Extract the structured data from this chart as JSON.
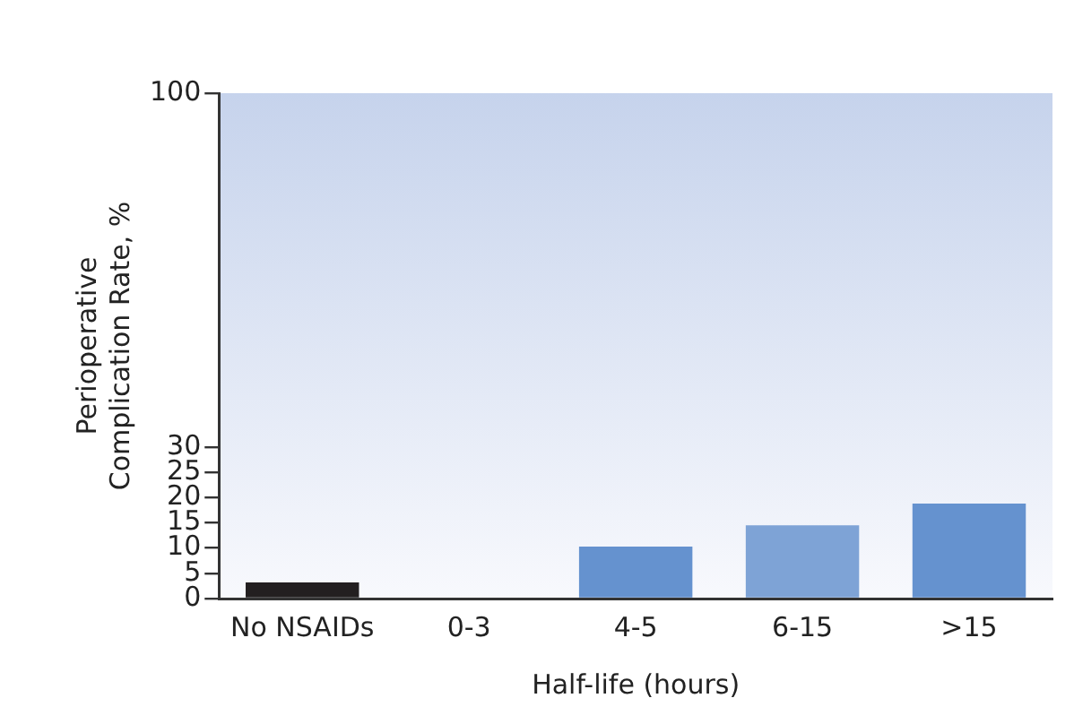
{
  "chart_data": {
    "type": "bar",
    "xlabel": "Half-life (hours)",
    "ylabel": "Perioperative Complication Rate, %",
    "categories": [
      "No NSAIDs",
      "0-3",
      "4-5",
      "6-15",
      ">15"
    ],
    "values": [
      3.2,
      0,
      10.3,
      14.5,
      18.8
    ],
    "colors": [
      "#231f20",
      "#6592cf",
      "#6592cf",
      "#7ea3d6",
      "#6592cf"
    ],
    "ylim": [
      0,
      100
    ],
    "yticks": [
      0,
      5,
      10,
      15,
      20,
      25,
      30,
      100
    ],
    "grid": false,
    "legend": false
  }
}
